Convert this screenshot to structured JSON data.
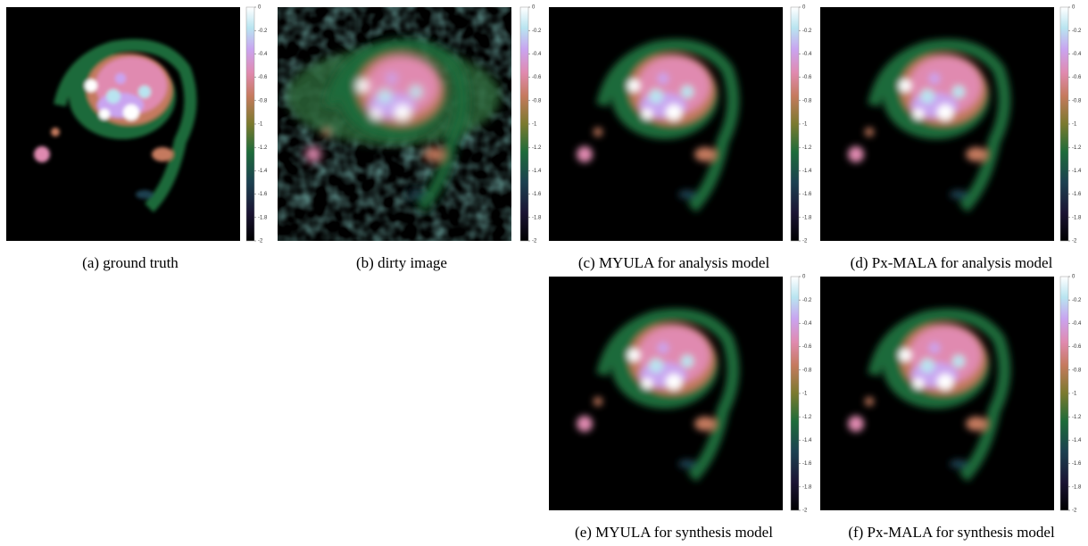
{
  "panels": [
    {
      "caption": "(a) ground truth"
    },
    {
      "caption": "(b) dirty image"
    },
    {
      "caption": "(c) MYULA for analysis model"
    },
    {
      "caption": "(d) Px-MALA for analysis model"
    },
    {
      "caption": "(e) MYULA for synthesis model"
    },
    {
      "caption": "(f) Px-MALA for synthesis model"
    }
  ],
  "colorbar": {
    "ylim": [
      -2,
      0
    ],
    "yticks": [
      0,
      -0.2,
      -0.4,
      -0.6,
      -0.8,
      -1,
      -1.2,
      -1.4,
      -1.6,
      -1.8,
      -2
    ]
  }
}
